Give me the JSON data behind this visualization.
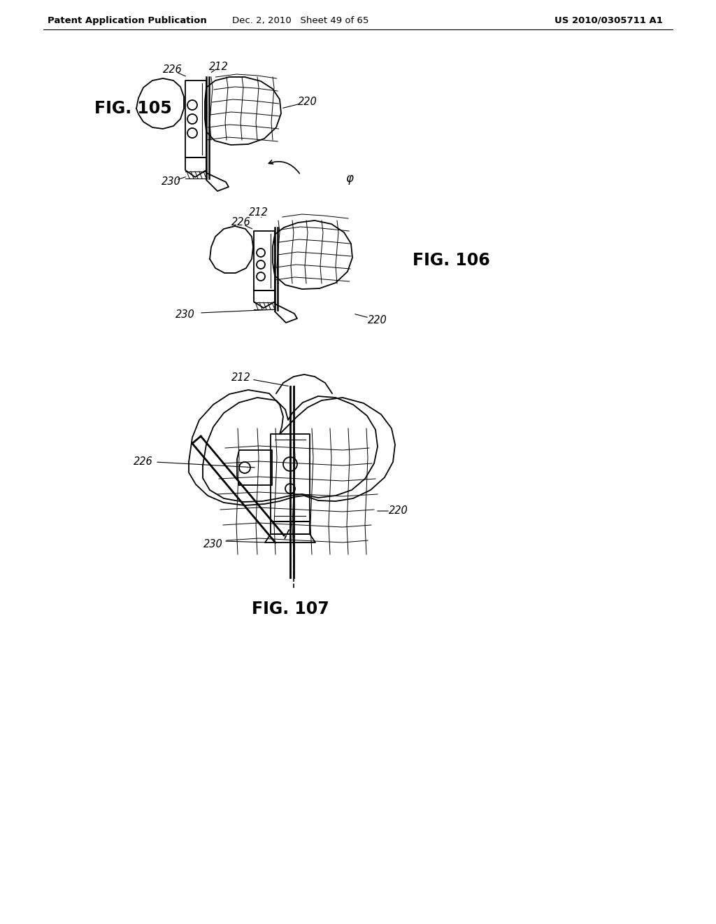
{
  "bg_color": "#ffffff",
  "header_left": "Patent Application Publication",
  "header_mid": "Dec. 2, 2010   Sheet 49 of 65",
  "header_right": "US 2010/0305711 A1",
  "fig105_label": "FIG. 105",
  "fig106_label": "FIG. 106",
  "fig107_label": "FIG. 107",
  "line_color": "#000000",
  "line_width": 1.3,
  "label_fontsize": 10.5,
  "fig_label_fontsize": 17,
  "header_fontsize": 9.5
}
